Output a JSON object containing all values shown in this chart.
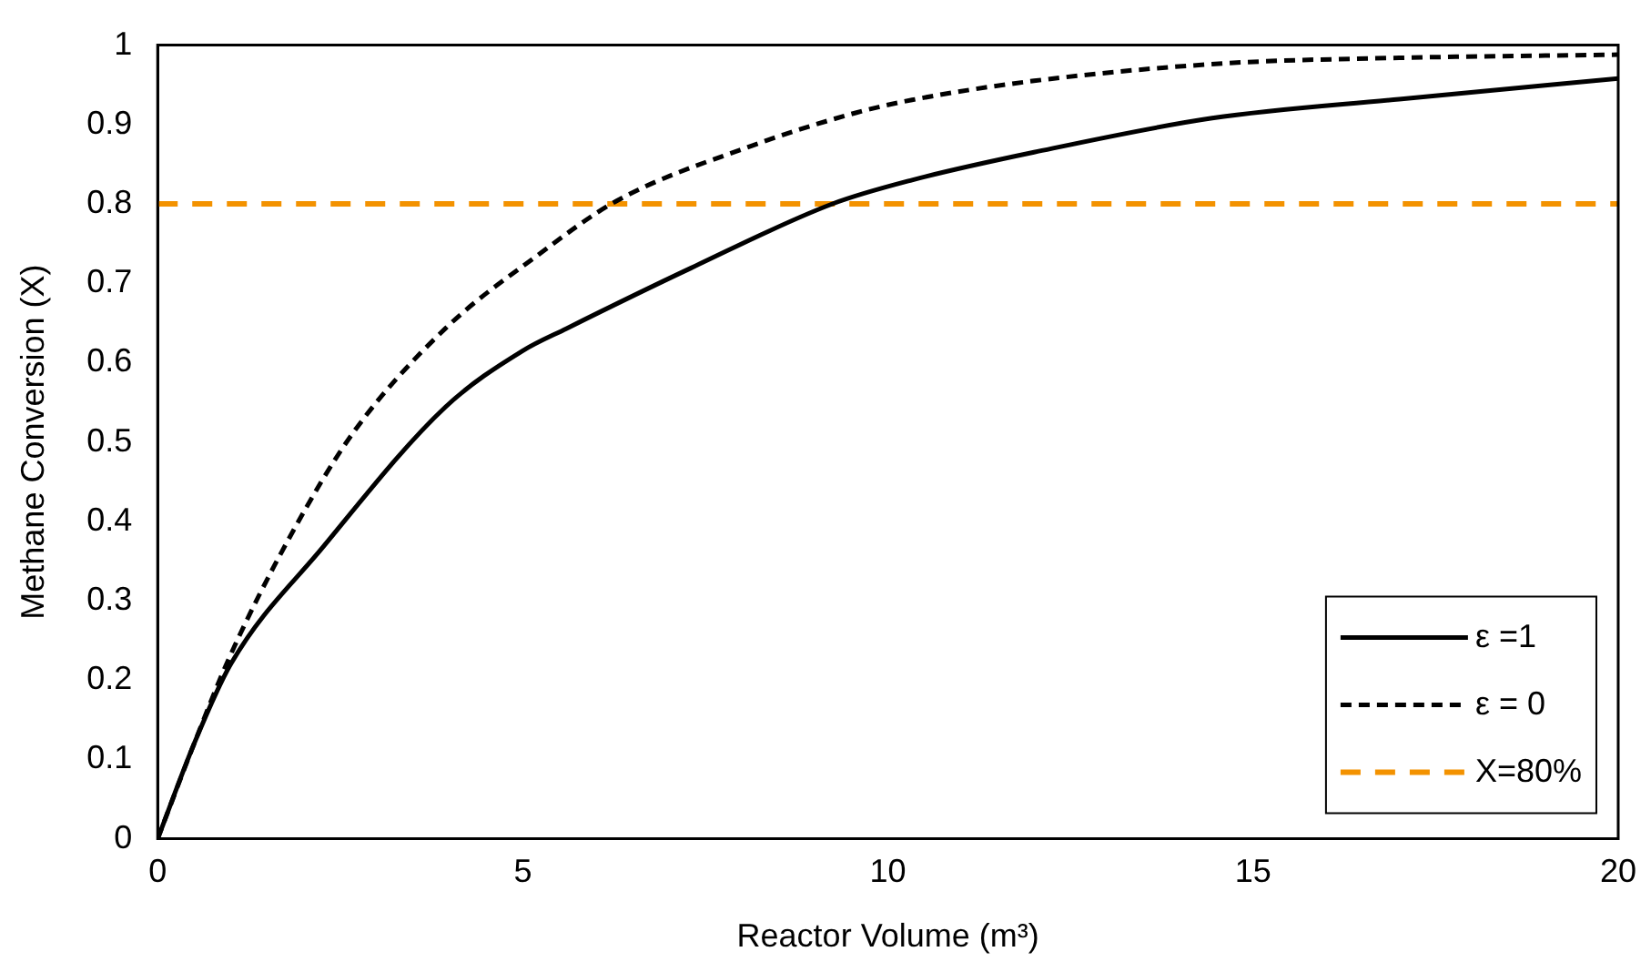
{
  "chart_data": {
    "type": "line",
    "xlabel": "Reactor Volume (m³)",
    "ylabel": "Methane Conversion (X)",
    "xlim": [
      0,
      20
    ],
    "xticks": [
      0,
      5,
      10,
      15,
      20
    ],
    "ylim": [
      0,
      1
    ],
    "yticks": [
      0,
      0.1,
      0.2,
      0.3,
      0.4,
      0.5,
      0.6,
      0.7,
      0.8,
      0.9,
      1
    ],
    "grid": false,
    "legend": "bottom right",
    "marker": "none",
    "series": [
      {
        "name": "ε =1",
        "color": "#000000",
        "line_style": "solid",
        "x": [
          0,
          0.5,
          1,
          2.25,
          3.94,
          5,
          5.6,
          7.3,
          9.24,
          10.33,
          12,
          14.44,
          17,
          20
        ],
        "values": [
          0,
          0.12,
          0.22,
          0.366,
          0.544,
          0.615,
          0.643,
          0.719,
          0.8,
          0.83,
          0.865,
          0.908,
          0.932,
          0.958
        ]
      },
      {
        "name": "ε = 0",
        "color": "#000000",
        "line_style": "dashed",
        "x": [
          0,
          0.5,
          0.98,
          1.82,
          2.68,
          3.94,
          5.2,
          6.29,
          8.13,
          9.57,
          10.33,
          12,
          14.6,
          17,
          20
        ],
        "values": [
          0,
          0.12,
          0.228,
          0.382,
          0.512,
          0.643,
          0.735,
          0.804,
          0.873,
          0.915,
          0.931,
          0.955,
          0.977,
          0.984,
          0.988
        ]
      },
      {
        "name": "X=80%",
        "color": "#f39200",
        "line_style": "dashed",
        "x": [
          0,
          20
        ],
        "values": [
          0.8,
          0.8
        ]
      }
    ]
  }
}
